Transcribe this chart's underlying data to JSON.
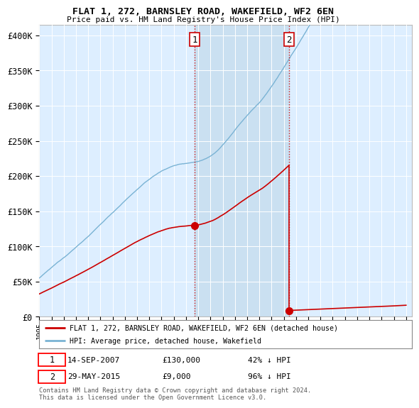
{
  "title": "FLAT 1, 272, BARNSLEY ROAD, WAKEFIELD, WF2 6EN",
  "subtitle": "Price paid vs. HM Land Registry's House Price Index (HPI)",
  "ylabel_ticks": [
    "£0",
    "£50K",
    "£100K",
    "£150K",
    "£200K",
    "£250K",
    "£300K",
    "£350K",
    "£400K"
  ],
  "ytick_vals": [
    0,
    50000,
    100000,
    150000,
    200000,
    250000,
    300000,
    350000,
    400000
  ],
  "ylim": [
    0,
    415000
  ],
  "xlim_start": 1995,
  "xlim_end": 2025.5,
  "hpi_color": "#7ab3d4",
  "price_color": "#cc0000",
  "shade_color": "#c8dff0",
  "transaction1_year": 2007.71,
  "transaction1_price": 130000,
  "transaction2_year": 2015.41,
  "transaction2_price": 9000,
  "legend_property": "FLAT 1, 272, BARNSLEY ROAD, WAKEFIELD, WF2 6EN (detached house)",
  "legend_hpi": "HPI: Average price, detached house, Wakefield",
  "note1_date": "14-SEP-2007",
  "note1_price": "£130,000",
  "note1_hpi": "42% ↓ HPI",
  "note2_date": "29-MAY-2015",
  "note2_price": "£9,000",
  "note2_hpi": "96% ↓ HPI",
  "footer": "Contains HM Land Registry data © Crown copyright and database right 2024.\nThis data is licensed under the Open Government Licence v3.0.",
  "background_color": "#ffffff",
  "plot_bg_color": "#ddeeff"
}
